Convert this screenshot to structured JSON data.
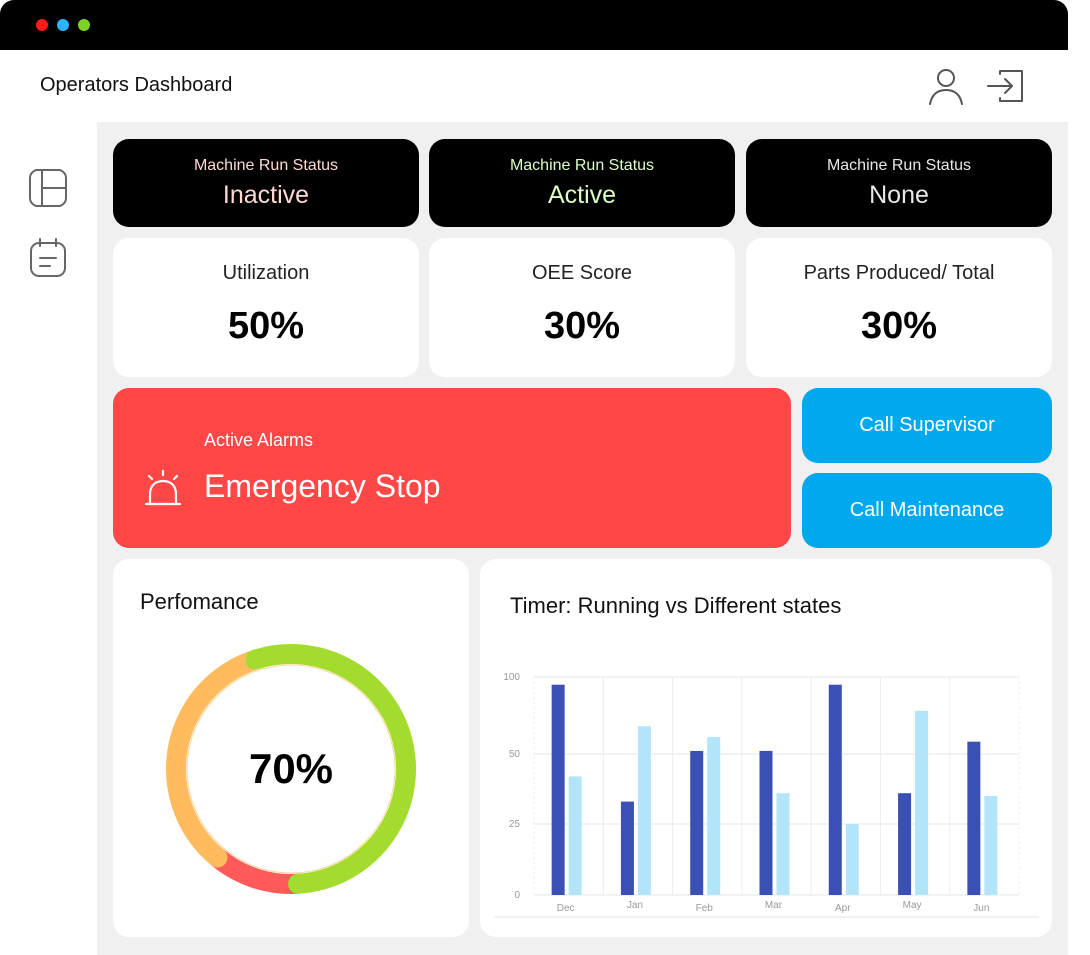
{
  "window": {
    "dots": [
      "#ff1a1a",
      "#2db3ff",
      "#7ed321"
    ]
  },
  "header": {
    "title": "Operators Dashboard",
    "user_icon": "user-icon",
    "logout_icon": "logout-icon"
  },
  "sidebar": {
    "items": [
      {
        "icon": "layout-icon"
      },
      {
        "icon": "notes-icon"
      }
    ]
  },
  "status_cards": [
    {
      "label": "Machine Run Status",
      "value": "Inactive",
      "color": "#ffd9d2"
    },
    {
      "label": "Machine Run Status",
      "value": "Active",
      "color": "#dcffc4"
    },
    {
      "label": "Machine Run Status",
      "value": "None",
      "color": "#e8e8e8"
    }
  ],
  "metrics": [
    {
      "label": "Utilization",
      "value": "50%"
    },
    {
      "label": "OEE Score",
      "value": "30%"
    },
    {
      "label": "Parts Produced/ Total",
      "value": "30%"
    }
  ],
  "alarm": {
    "label": "Active Alarms",
    "value": "Emergency Stop",
    "icon": "alarm-icon",
    "color": "#ff4747"
  },
  "actions": {
    "supervisor": "Call Supervisor",
    "maintenance": "Call Maintenance",
    "color": "#00a8ee"
  },
  "performance": {
    "title": "Perfomance",
    "value": "70%",
    "segments": [
      {
        "fraction": 0.54,
        "color": "#a3dc2f"
      },
      {
        "fraction": 0.12,
        "color": "#ff5a5a"
      },
      {
        "fraction": 0.34,
        "color": "#ffbb5e"
      }
    ]
  },
  "timer": {
    "title": "Timer: Running vs Different states",
    "chart_data": {
      "type": "bar",
      "categories": [
        "Dec",
        "Jan",
        "Feb",
        "Mar",
        "Apr",
        "May",
        "Jun"
      ],
      "series": [
        {
          "values": [
            95,
            33,
            52,
            52,
            95,
            36,
            58
          ],
          "color": "#3a50b3"
        },
        {
          "values": [
            42,
            68,
            61,
            36,
            25,
            78,
            35
          ],
          "color": "#b3e5fa"
        }
      ],
      "y_ticks": [
        "0",
        "25",
        "50",
        "100"
      ],
      "grid": true
    }
  }
}
